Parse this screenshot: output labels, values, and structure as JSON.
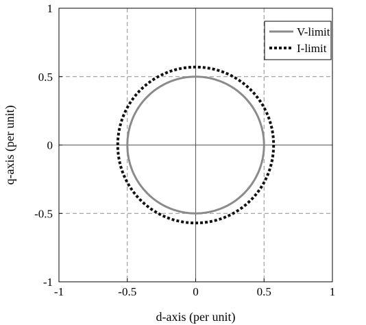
{
  "chart_data": {
    "type": "line",
    "title": "",
    "xlabel": "d-axis (per unit)",
    "ylabel": "q-axis (per unit)",
    "xlim": [
      -1,
      1
    ],
    "ylim": [
      -1,
      1
    ],
    "xticks": [
      -1,
      -0.5,
      0,
      0.5,
      1
    ],
    "yticks": [
      -1,
      -0.5,
      0,
      0.5,
      1
    ],
    "xtick_labels": [
      "-1",
      "-0.5",
      "0",
      "0.5",
      "1"
    ],
    "ytick_labels": [
      "-1",
      "-0.5",
      "0",
      "0.5",
      "1"
    ],
    "grid": true,
    "legend_position": "top-right",
    "series": [
      {
        "name": "V-limit",
        "shape": "circle",
        "center": [
          0,
          0
        ],
        "radius": 0.5,
        "style": "solid",
        "color": "#8a8a8a"
      },
      {
        "name": "I-limit",
        "shape": "circle",
        "center": [
          0,
          0
        ],
        "radius": 0.57,
        "style": "dotted",
        "color": "#111111"
      }
    ]
  }
}
